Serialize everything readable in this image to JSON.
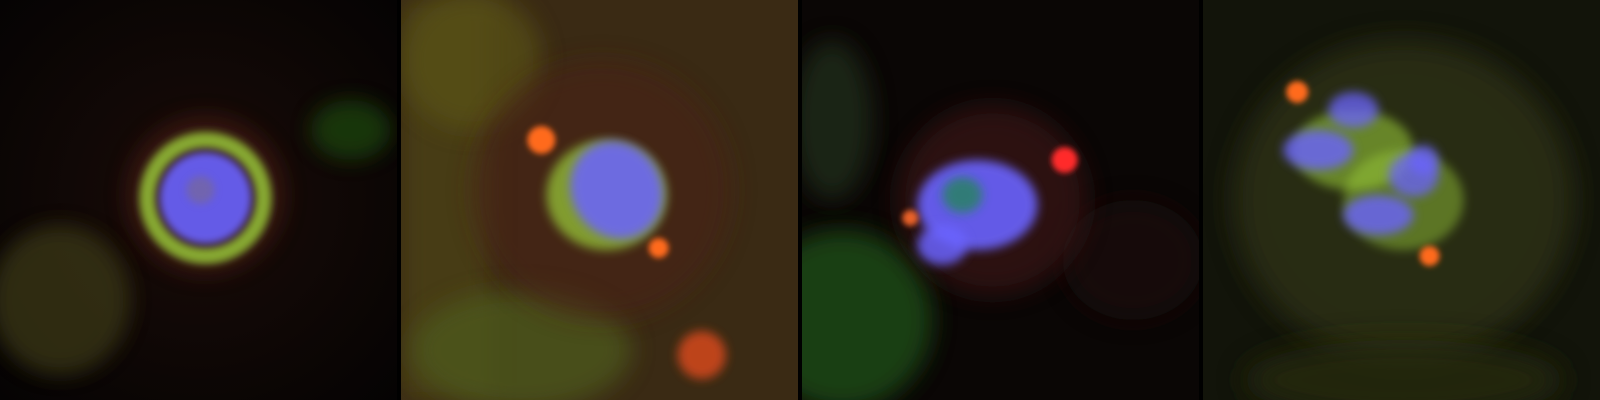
{
  "figure": {
    "panels": [
      {
        "id": "panel-1",
        "channels": [
          "red",
          "green",
          "blue"
        ]
      },
      {
        "id": "panel-2",
        "channels": [
          "red",
          "green",
          "blue"
        ]
      },
      {
        "id": "panel-3",
        "channels": [
          "red",
          "green",
          "blue"
        ]
      },
      {
        "id": "panel-4",
        "channels": [
          "red",
          "green",
          "blue"
        ]
      }
    ],
    "colors": {
      "dna": "#6b63ff",
      "spindle": "#9ccf3a",
      "centrosome": "#ff4a1c",
      "background": "#000000"
    }
  }
}
